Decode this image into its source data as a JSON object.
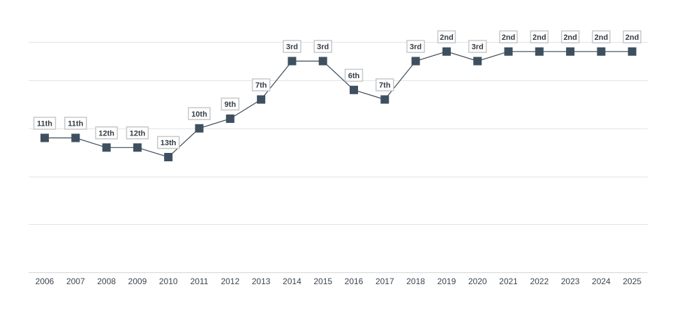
{
  "chart_data": {
    "type": "line",
    "title": "",
    "xlabel": "",
    "ylabel": "",
    "x": [
      "2006",
      "2007",
      "2008",
      "2009",
      "2010",
      "2011",
      "2012",
      "2013",
      "2014",
      "2015",
      "2016",
      "2017",
      "2018",
      "2019",
      "2020",
      "2021",
      "2022",
      "2023",
      "2024",
      "2025"
    ],
    "series": [
      {
        "values": [
          11,
          11,
          12,
          12,
          13,
          10,
          9,
          7,
          3,
          3,
          6,
          7,
          3,
          2,
          3,
          2,
          2,
          2,
          2,
          2
        ],
        "labels": [
          "11th",
          "11th",
          "12th",
          "12th",
          "13th",
          "10th",
          "9th",
          "7th",
          "3rd",
          "3rd",
          "6th",
          "7th",
          "3rd",
          "2nd",
          "3rd",
          "2nd",
          "2nd",
          "2nd",
          "2nd",
          "2nd"
        ]
      }
    ],
    "y_axis": {
      "inverted": true,
      "range": [
        1,
        25
      ],
      "gridlines": [
        1,
        5,
        10,
        15,
        20
      ]
    },
    "grid": true,
    "legend": "none",
    "colors": {
      "line": "#3c4a57",
      "marker": "#3e5060",
      "label_border": "#c8c8c8",
      "grid": "#e3e3e3",
      "tick_text": "#3a4552"
    }
  }
}
